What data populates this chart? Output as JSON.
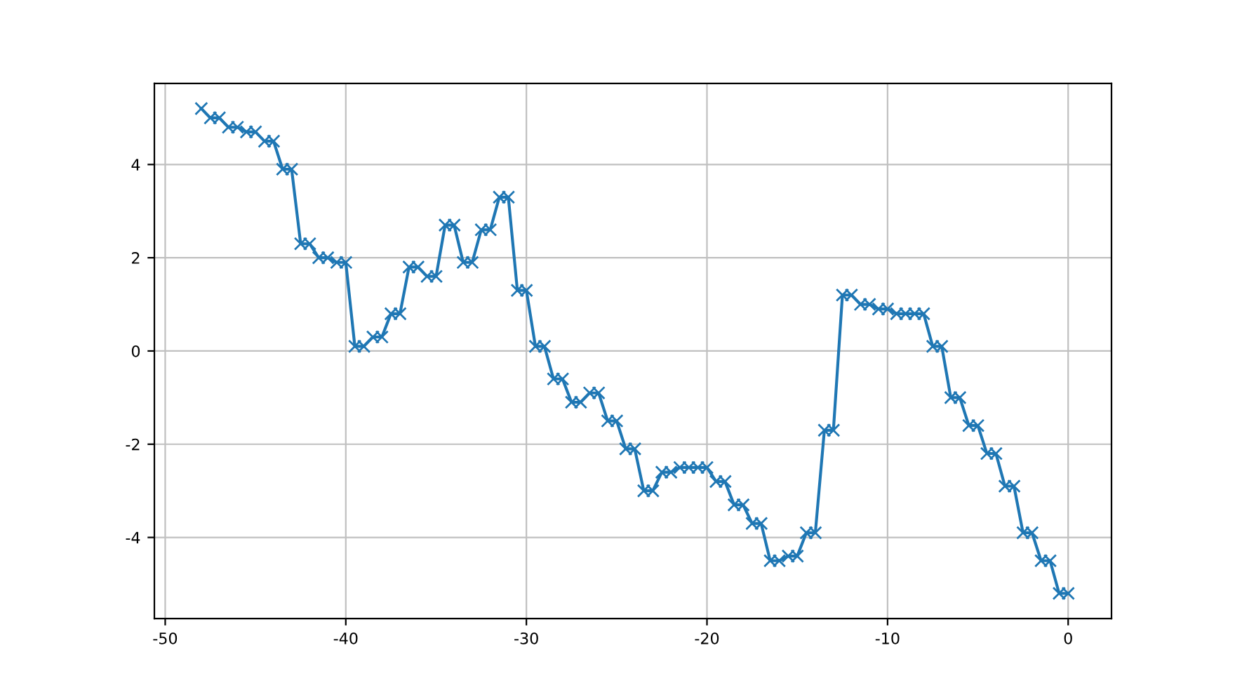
{
  "chart_data": {
    "type": "line",
    "x": [
      -48,
      -47.5,
      -47,
      -46.5,
      -46,
      -45.5,
      -45,
      -44.5,
      -44,
      -43.5,
      -43,
      -42.5,
      -42,
      -41.5,
      -41,
      -40.5,
      -40,
      -39.5,
      -39,
      -38.5,
      -38,
      -37.5,
      -37,
      -36.5,
      -36,
      -35.5,
      -35,
      -34.5,
      -34,
      -33.5,
      -33,
      -32.5,
      -32,
      -31.5,
      -31,
      -30.5,
      -30,
      -29.5,
      -29,
      -28.5,
      -28,
      -27.5,
      -27,
      -26.5,
      -26,
      -25.5,
      -25,
      -24.5,
      -24,
      -23.5,
      -23,
      -22.5,
      -22,
      -21.5,
      -21,
      -20.5,
      -20,
      -19.5,
      -19,
      -18.5,
      -18,
      -17.5,
      -17,
      -16.5,
      -16,
      -15.5,
      -15,
      -14.5,
      -14,
      -13.5,
      -13,
      -12.5,
      -12,
      -11.5,
      -11,
      -10.5,
      -10,
      -9.5,
      -9,
      -8.5,
      -8,
      -7.5,
      -7,
      -6.5,
      -6,
      -5.5,
      -5,
      -4.5,
      -4,
      -3.5,
      -3,
      -2.5,
      -2,
      -1.5,
      -1,
      -0.5,
      0
    ],
    "series": [
      {
        "color": "#1f77b4",
        "values": [
          5.2,
          5.0,
          5.0,
          4.8,
          4.8,
          4.7,
          4.7,
          4.5,
          4.5,
          3.9,
          3.9,
          2.3,
          2.3,
          2.0,
          2.0,
          1.9,
          1.9,
          0.1,
          0.1,
          0.3,
          0.3,
          0.8,
          0.8,
          1.8,
          1.8,
          1.6,
          1.6,
          2.7,
          2.7,
          1.9,
          1.9,
          2.6,
          2.6,
          3.3,
          3.3,
          1.3,
          1.3,
          0.1,
          0.1,
          -0.6,
          -0.6,
          -1.1,
          -1.1,
          -0.9,
          -0.9,
          -1.5,
          -1.5,
          -2.1,
          -2.1,
          -3.0,
          -3.0,
          -2.6,
          -2.6,
          -2.5,
          -2.5,
          -2.5,
          -2.5,
          -2.8,
          -2.8,
          -3.3,
          -3.3,
          -3.7,
          -3.7,
          -4.5,
          -4.5,
          -4.4,
          -4.4,
          -3.9,
          -3.9,
          -1.7,
          -1.7,
          1.2,
          1.2,
          1.0,
          1.0,
          0.9,
          0.9,
          0.8,
          0.8,
          0.8,
          0.8,
          0.1,
          0.1,
          -1.0,
          -1.0,
          -1.6,
          -1.6,
          -2.2,
          -2.2,
          -2.9,
          -2.9,
          -3.9,
          -3.9,
          -4.5,
          -4.5,
          -5.2,
          -5.2
        ]
      }
    ],
    "xlim": [
      -50.6,
      2.4
    ],
    "ylim": [
      -5.74,
      5.74
    ],
    "xticks": [
      -50,
      -40,
      -30,
      -20,
      -10,
      0
    ],
    "yticks": [
      -4,
      -2,
      0,
      2,
      4
    ],
    "grid": true,
    "marker": "cross",
    "line_style": "solid"
  }
}
